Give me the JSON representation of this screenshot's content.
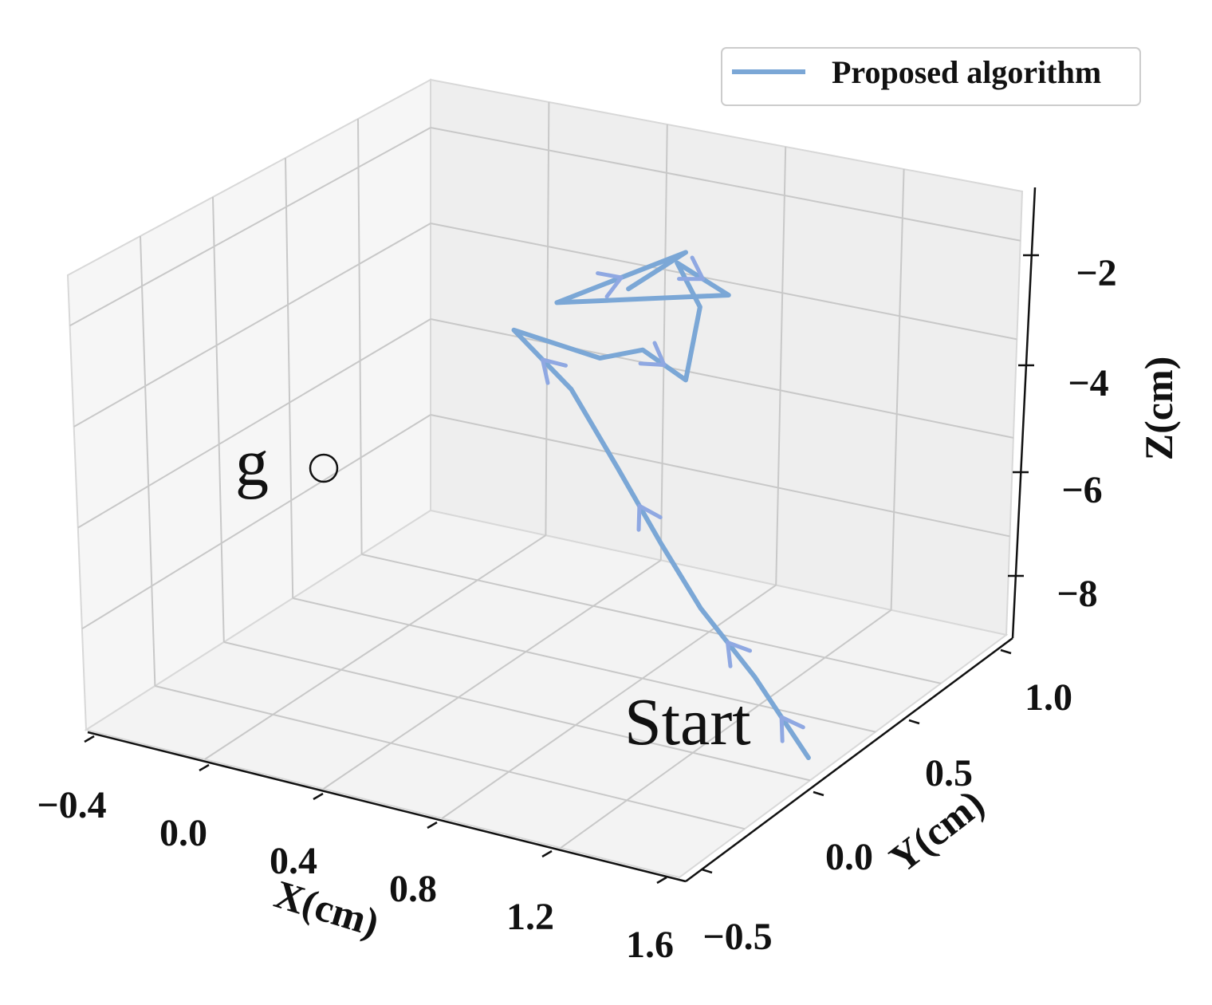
{
  "chart_data": {
    "type": "line",
    "projection": "3d",
    "xlabel": "X(cm)",
    "ylabel": "Y(cm)",
    "zlabel": "Z(cm)",
    "x_ticks": [
      "−0.4",
      "0.0",
      "0.4",
      "0.8",
      "1.2",
      "1.6"
    ],
    "y_ticks": [
      "−0.5",
      "0.0",
      "0.5",
      "1.0"
    ],
    "z_ticks": [
      "−2",
      "−4",
      "−6",
      "−8"
    ],
    "xlim": [
      -0.4,
      1.6
    ],
    "ylim": [
      -0.5,
      1.0
    ],
    "zlim": [
      -9,
      -1
    ],
    "grid": true,
    "legend_position": "top-right",
    "series": [
      {
        "name": "Proposed algorithm",
        "color": "#7ba7d6",
        "arrow_color": "#8fa8e2",
        "direction": "from Start to g",
        "points": [
          {
            "x": 1.5,
            "y": 0.3,
            "z": -9.0
          },
          {
            "x": 1.2,
            "y": 0.45,
            "z": -8.4
          },
          {
            "x": 0.9,
            "y": 0.6,
            "z": -8.0
          },
          {
            "x": 0.65,
            "y": 0.75,
            "z": -7.6
          },
          {
            "x": 0.35,
            "y": 0.95,
            "z": -7.2
          },
          {
            "x": 0.15,
            "y": 1.0,
            "z": -6.3
          },
          {
            "x": -0.05,
            "y": 1.0,
            "z": -5.6
          },
          {
            "x": 0.25,
            "y": 1.0,
            "z": -5.7
          },
          {
            "x": 0.4,
            "y": 1.0,
            "z": -5.4
          },
          {
            "x": 0.55,
            "y": 1.0,
            "z": -5.7
          },
          {
            "x": 0.6,
            "y": 1.0,
            "z": -4.5
          },
          {
            "x": 0.52,
            "y": 1.0,
            "z": -3.9
          },
          {
            "x": 0.7,
            "y": 1.0,
            "z": -4.2
          },
          {
            "x": 0.1,
            "y": 1.0,
            "z": -5.0
          },
          {
            "x": 0.55,
            "y": 1.0,
            "z": -3.7
          },
          {
            "x": 0.35,
            "y": 1.0,
            "z": -4.5
          }
        ]
      }
    ],
    "annotations": [
      {
        "text": "g",
        "x": -0.05,
        "y": 1.0,
        "z": -5.6,
        "marker": "open-circle"
      },
      {
        "text": "Start",
        "x": 1.5,
        "y": 0.3,
        "z": -9.0
      }
    ]
  }
}
